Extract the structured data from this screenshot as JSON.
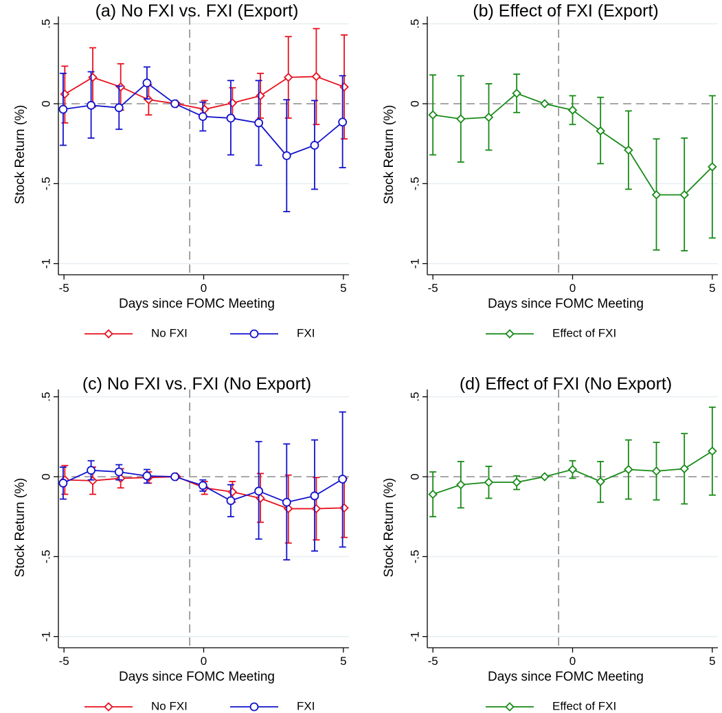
{
  "chart_data": [
    {
      "type": "line",
      "title": "(a) No FXI vs. FXI (Export)",
      "xlabel": "Days since FOMC Meeting",
      "ylabel": "Stock Return (%)",
      "x": [
        -5,
        -4,
        -3,
        -2,
        -1,
        0,
        1,
        2,
        3,
        4,
        5
      ],
      "xticks": [
        -5,
        0,
        5
      ],
      "xtick_labels": [
        "-5",
        "0",
        "5"
      ],
      "yticks": [
        0.5,
        0,
        -0.5,
        -1
      ],
      "ytick_labels": [
        ".5",
        "0",
        "-.5",
        "-1"
      ],
      "xlim": [
        -5.2,
        5.2
      ],
      "ylim": [
        -1.07,
        0.52
      ],
      "reference_lines": {
        "horizontal_y": 0,
        "vertical_x": -0.5
      },
      "grid": true,
      "legend_position": "bottom",
      "series": [
        {
          "name": "No FXI",
          "color": "#e8101e",
          "marker": "diamond",
          "offset": 0.03,
          "values": [
            0.06,
            0.165,
            0.105,
            0.025,
            0.0,
            -0.035,
            0.005,
            0.05,
            0.165,
            0.17,
            0.105
          ],
          "lower": [
            -0.12,
            -0.02,
            -0.04,
            -0.07,
            0.0,
            -0.08,
            -0.09,
            -0.09,
            -0.09,
            -0.13,
            -0.22
          ],
          "upper": [
            0.235,
            0.35,
            0.25,
            0.12,
            0.0,
            0.02,
            0.1,
            0.19,
            0.42,
            0.47,
            0.43
          ]
        },
        {
          "name": "FXI",
          "color": "#1212cc",
          "marker": "circle",
          "offset": -0.03,
          "values": [
            -0.035,
            -0.01,
            -0.025,
            0.13,
            0.0,
            -0.08,
            -0.09,
            -0.12,
            -0.325,
            -0.26,
            -0.115
          ],
          "lower": [
            -0.26,
            -0.215,
            -0.16,
            0.03,
            0.0,
            -0.17,
            -0.32,
            -0.385,
            -0.675,
            -0.535,
            -0.4
          ],
          "upper": [
            0.19,
            0.2,
            0.11,
            0.23,
            0.0,
            0.01,
            0.145,
            0.145,
            0.025,
            0.02,
            0.175
          ]
        }
      ]
    },
    {
      "type": "line",
      "title": "(b) Effect of FXI (Export)",
      "xlabel": "Days since FOMC Meeting",
      "ylabel": "Stock Return (%)",
      "x": [
        -5,
        -4,
        -3,
        -2,
        -1,
        0,
        1,
        2,
        3,
        4,
        5
      ],
      "xticks": [
        -5,
        0,
        5
      ],
      "xtick_labels": [
        "-5",
        "0",
        "5"
      ],
      "yticks": [
        0.5,
        0,
        -0.5,
        -1
      ],
      "ytick_labels": [
        ".5",
        "0",
        "-.5",
        "-1"
      ],
      "xlim": [
        -5.2,
        5.2
      ],
      "ylim": [
        -1.07,
        0.52
      ],
      "reference_lines": {
        "horizontal_y": 0,
        "vertical_x": -0.5
      },
      "grid": true,
      "legend_position": "bottom",
      "series": [
        {
          "name": "Effect of FXI",
          "color": "#178a17",
          "marker": "diamond",
          "offset": 0,
          "values": [
            -0.07,
            -0.095,
            -0.085,
            0.065,
            0.0,
            -0.04,
            -0.17,
            -0.29,
            -0.57,
            -0.57,
            -0.395
          ],
          "lower": [
            -0.32,
            -0.365,
            -0.29,
            -0.055,
            0.0,
            -0.13,
            -0.375,
            -0.535,
            -0.915,
            -0.92,
            -0.84
          ],
          "upper": [
            0.18,
            0.175,
            0.125,
            0.185,
            0.0,
            0.05,
            0.04,
            -0.045,
            -0.22,
            -0.215,
            0.05
          ]
        }
      ]
    },
    {
      "type": "line",
      "title": "(c) No FXI vs. FXI (No Export)",
      "xlabel": "Days since FOMC Meeting",
      "ylabel": "Stock Return (%)",
      "x": [
        -5,
        -4,
        -3,
        -2,
        -1,
        0,
        1,
        2,
        3,
        4,
        5
      ],
      "xticks": [
        -5,
        0,
        5
      ],
      "xtick_labels": [
        "-5",
        "0",
        "5"
      ],
      "yticks": [
        0.5,
        0,
        -0.5,
        -1
      ],
      "ytick_labels": [
        ".5",
        "0",
        "-.5",
        "-1"
      ],
      "xlim": [
        -5.2,
        5.2
      ],
      "ylim": [
        -1.07,
        0.52
      ],
      "reference_lines": {
        "horizontal_y": 0,
        "vertical_x": -0.5
      },
      "grid": true,
      "legend_position": "bottom",
      "series": [
        {
          "name": "No FXI",
          "color": "#e8101e",
          "marker": "diamond",
          "offset": 0.03,
          "values": [
            -0.02,
            -0.025,
            -0.01,
            -0.005,
            0.0,
            -0.07,
            -0.095,
            -0.135,
            -0.2,
            -0.2,
            -0.195
          ],
          "lower": [
            -0.11,
            -0.11,
            -0.07,
            -0.04,
            0.0,
            -0.11,
            -0.16,
            -0.285,
            -0.415,
            -0.395,
            -0.38
          ],
          "upper": [
            0.07,
            0.06,
            0.05,
            0.03,
            0.0,
            -0.03,
            -0.03,
            0.02,
            0.01,
            -0.005,
            -0.01
          ]
        },
        {
          "name": "FXI",
          "color": "#1212cc",
          "marker": "circle",
          "offset": -0.03,
          "values": [
            -0.04,
            0.04,
            0.03,
            0.005,
            0.0,
            -0.055,
            -0.15,
            -0.09,
            -0.16,
            -0.12,
            -0.015
          ],
          "lower": [
            -0.14,
            -0.02,
            -0.02,
            -0.04,
            0.0,
            -0.09,
            -0.25,
            -0.39,
            -0.52,
            -0.465,
            -0.44
          ],
          "upper": [
            0.06,
            0.1,
            0.075,
            0.045,
            0.0,
            -0.02,
            -0.05,
            0.22,
            0.205,
            0.23,
            0.405
          ]
        }
      ]
    },
    {
      "type": "line",
      "title": "(d) Effect of FXI (No Export)",
      "xlabel": "Days since FOMC Meeting",
      "ylabel": "Stock Return (%)",
      "x": [
        -5,
        -4,
        -3,
        -2,
        -1,
        0,
        1,
        2,
        3,
        4,
        5
      ],
      "xticks": [
        -5,
        0,
        5
      ],
      "xtick_labels": [
        "-5",
        "0",
        "5"
      ],
      "yticks": [
        0.5,
        0,
        -0.5,
        -1
      ],
      "ytick_labels": [
        ".5",
        "0",
        "-.5",
        "-1"
      ],
      "xlim": [
        -5.2,
        5.2
      ],
      "ylim": [
        -1.07,
        0.52
      ],
      "reference_lines": {
        "horizontal_y": 0,
        "vertical_x": -0.5
      },
      "grid": true,
      "legend_position": "bottom",
      "series": [
        {
          "name": "Effect of FXI",
          "color": "#178a17",
          "marker": "diamond",
          "offset": 0,
          "values": [
            -0.11,
            -0.05,
            -0.035,
            -0.035,
            0.0,
            0.045,
            -0.03,
            0.045,
            0.035,
            0.05,
            0.16
          ],
          "lower": [
            -0.25,
            -0.195,
            -0.135,
            -0.08,
            0.0,
            -0.01,
            -0.16,
            -0.14,
            -0.145,
            -0.17,
            -0.115
          ],
          "upper": [
            0.03,
            0.095,
            0.065,
            0.005,
            0.0,
            0.1,
            0.095,
            0.23,
            0.215,
            0.27,
            0.435
          ]
        }
      ]
    }
  ]
}
